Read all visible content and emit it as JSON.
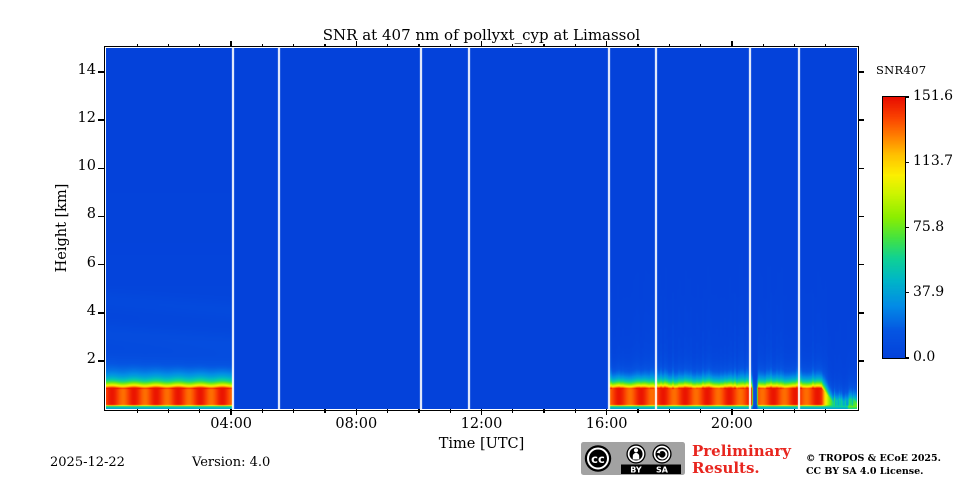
{
  "figure": {
    "footer": {
      "date": "2025-12-22",
      "version_label": "Version: 4.0",
      "preliminary_line1": "Preliminary",
      "preliminary_line2": "Results.",
      "preliminary_color": "#e8261f",
      "copyright_line1": "© TROPOS & ECoE 2025.",
      "copyright_line2": "CC BY SA 4.0 License.",
      "cc_badge": {
        "icons": [
          "cc-icon",
          "attribution-icon",
          "share-alike-icon"
        ],
        "labels": [
          "BY",
          "SA"
        ]
      }
    }
  },
  "chart_data": {
    "type": "heatmap",
    "title": "SNR at 407 nm of pollyxt_cyp at Limassol",
    "xlabel": "Time [UTC]",
    "ylabel": "Height [km]",
    "xlim": [
      0,
      24
    ],
    "ylim": [
      0,
      15
    ],
    "grid": false,
    "x_major_ticks": [
      {
        "value": 4,
        "label": "04:00"
      },
      {
        "value": 8,
        "label": "08:00"
      },
      {
        "value": 12,
        "label": "12:00"
      },
      {
        "value": 16,
        "label": "16:00"
      },
      {
        "value": 20,
        "label": "20:00"
      }
    ],
    "x_minor_step_hours": 1,
    "y_major_ticks": [
      {
        "value": 2,
        "label": "2"
      },
      {
        "value": 4,
        "label": "4"
      },
      {
        "value": 6,
        "label": "6"
      },
      {
        "value": 8,
        "label": "8"
      },
      {
        "value": 10,
        "label": "10"
      },
      {
        "value": 12,
        "label": "12"
      },
      {
        "value": 14,
        "label": "14"
      }
    ],
    "colorbar": {
      "label": "SNR407",
      "vmin": 0,
      "vmax": 151.6,
      "ticks": [
        {
          "value": 151.6,
          "label": "151.6"
        },
        {
          "value": 113.7,
          "label": "113.7"
        },
        {
          "value": 75.8,
          "label": "75.8"
        },
        {
          "value": 37.9,
          "label": "37.9"
        },
        {
          "value": 0,
          "label": "0.0"
        }
      ]
    },
    "colormap": [
      [
        0.0,
        "#0442da"
      ],
      [
        0.1,
        "#0555e2"
      ],
      [
        0.2,
        "#028ce6"
      ],
      [
        0.3,
        "#00b7c6"
      ],
      [
        0.38,
        "#0fd195"
      ],
      [
        0.46,
        "#45e33f"
      ],
      [
        0.54,
        "#8cee00"
      ],
      [
        0.63,
        "#cdf400"
      ],
      [
        0.7,
        "#fcf000"
      ],
      [
        0.78,
        "#ffc000"
      ],
      [
        0.85,
        "#ff8000"
      ],
      [
        0.92,
        "#fb4400"
      ],
      [
        1.0,
        "#e80d00"
      ]
    ],
    "background_snr": 0,
    "gaps_hours": [
      4.07,
      5.53,
      10.06,
      11.59,
      16.06,
      17.58,
      20.58,
      22.14
    ],
    "dropout_hour": 20.74,
    "signal_periods": [
      {
        "start": 0.0,
        "end": 4.07,
        "surface_peak_snr": 150,
        "peak_top_km": 0.85,
        "glow_top_km": 4.5,
        "streaky": false,
        "taper_start": null,
        "taper_end": null,
        "residual_snr": 0
      },
      {
        "start": 16.09,
        "end": 24.0,
        "surface_peak_snr": 150,
        "peak_top_km": 0.85,
        "glow_top_km": 5.0,
        "streaky": true,
        "taper_start": 22.87,
        "taper_end": 23.3,
        "residual_snr": 50
      }
    ]
  }
}
